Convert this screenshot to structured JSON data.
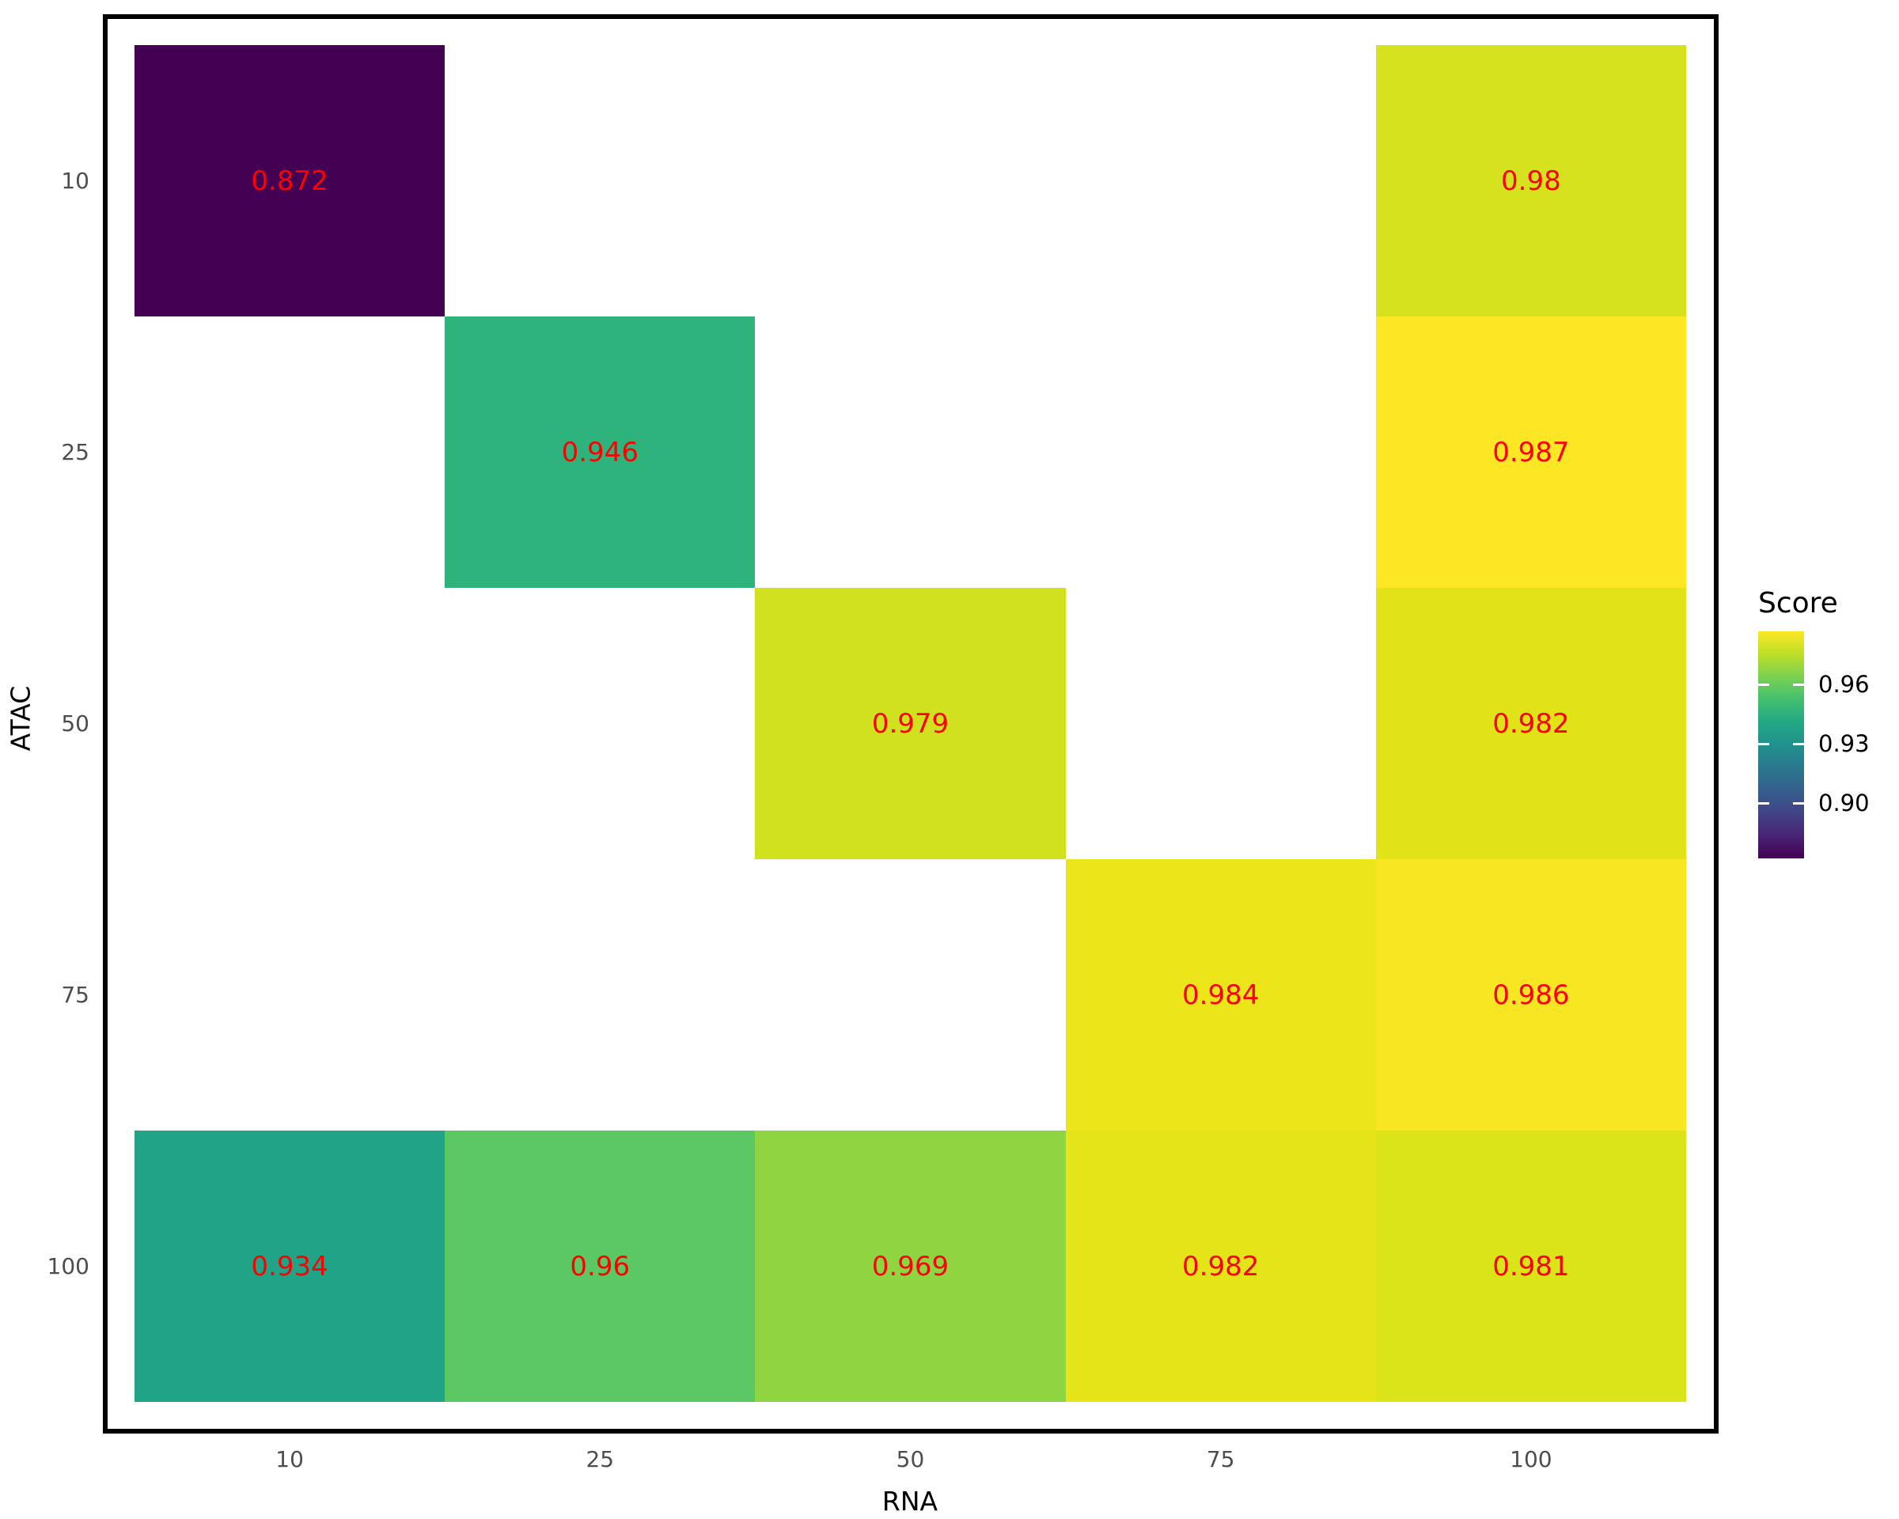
{
  "chart_data": {
    "type": "heatmap",
    "xlabel": "RNA",
    "ylabel": "ATAC",
    "x_categories": [
      "10",
      "25",
      "50",
      "75",
      "100"
    ],
    "y_categories": [
      "10",
      "25",
      "50",
      "75",
      "100"
    ],
    "cells": [
      {
        "x": "10",
        "y": "10",
        "value": 0.872,
        "label": "0.872",
        "color": "#440154"
      },
      {
        "x": "100",
        "y": "10",
        "value": 0.98,
        "label": "0.98",
        "color": "#d5e21d"
      },
      {
        "x": "25",
        "y": "25",
        "value": 0.946,
        "label": "0.946",
        "color": "#2eb37c"
      },
      {
        "x": "100",
        "y": "25",
        "value": 0.987,
        "label": "0.987",
        "color": "#fde725"
      },
      {
        "x": "50",
        "y": "50",
        "value": 0.979,
        "label": "0.979",
        "color": "#d1e11e"
      },
      {
        "x": "100",
        "y": "50",
        "value": 0.982,
        "label": "0.982",
        "color": "#e1e318"
      },
      {
        "x": "75",
        "y": "75",
        "value": 0.984,
        "label": "0.984",
        "color": "#ece51a"
      },
      {
        "x": "100",
        "y": "75",
        "value": 0.986,
        "label": "0.986",
        "color": "#f8e622"
      },
      {
        "x": "10",
        "y": "100",
        "value": 0.934,
        "label": "0.934",
        "color": "#20a386"
      },
      {
        "x": "25",
        "y": "100",
        "value": 0.96,
        "label": "0.96",
        "color": "#5bc863"
      },
      {
        "x": "50",
        "y": "100",
        "value": 0.969,
        "label": "0.969",
        "color": "#8ed541"
      },
      {
        "x": "75",
        "y": "100",
        "value": 0.982,
        "label": "0.982",
        "color": "#e4e419"
      },
      {
        "x": "100",
        "y": "100",
        "value": 0.981,
        "label": "0.981",
        "color": "#dbe319"
      }
    ],
    "value_label_color": "#ff0000",
    "tick_label_color": "#4d4d4d",
    "axis_title_color": "#000000",
    "panel_border_color": "#000000",
    "grid": false,
    "legend": {
      "title": "Score",
      "position": "right",
      "range": [
        0.872,
        0.987
      ],
      "ticks": [
        {
          "label": "0.96",
          "value": 0.96
        },
        {
          "label": "0.93",
          "value": 0.93
        },
        {
          "label": "0.90",
          "value": 0.9
        }
      ],
      "gradient_stops_bottom_to_top": [
        "#440154",
        "#482475",
        "#414487",
        "#355f8d",
        "#2a788e",
        "#21918c",
        "#22a884",
        "#44bf70",
        "#7ad151",
        "#bddf26",
        "#fde725"
      ]
    }
  }
}
